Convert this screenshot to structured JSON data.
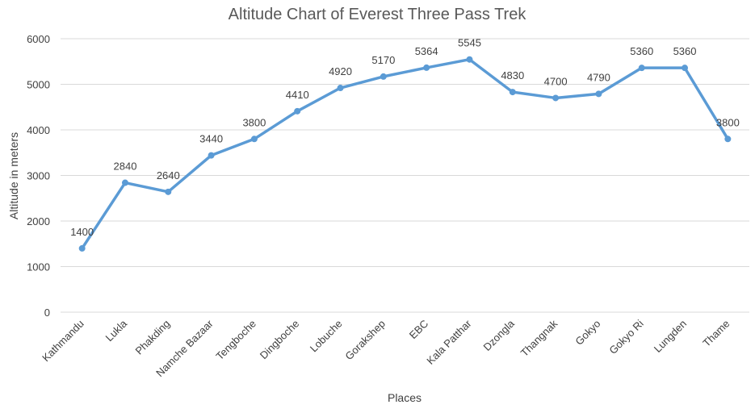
{
  "chart_data": {
    "type": "line",
    "title": "Altitude Chart of Everest Three Pass Trek",
    "xlabel": "Places",
    "ylabel": "Altitude in meters",
    "ylim": [
      0,
      6000
    ],
    "yticks": [
      0,
      1000,
      2000,
      3000,
      4000,
      5000,
      6000
    ],
    "grid": true,
    "categories": [
      "Kathmandu",
      "Lukla",
      "Phakding",
      "Namche Bazaar",
      "Tengboche",
      "Dingboche",
      "Lobuche",
      "Gorakshep",
      "EBC",
      "Kala Patthar",
      "Dzongla",
      "Thangnak",
      "Gokyo",
      "Gokyo Ri",
      "Lungden",
      "Thame"
    ],
    "series": [
      {
        "name": "Altitude",
        "color": "#5b9bd5",
        "values": [
          1400,
          2840,
          2640,
          3440,
          3800,
          4410,
          4920,
          5170,
          5364,
          5545,
          4830,
          4700,
          4790,
          5360,
          5360,
          3800
        ]
      }
    ]
  }
}
